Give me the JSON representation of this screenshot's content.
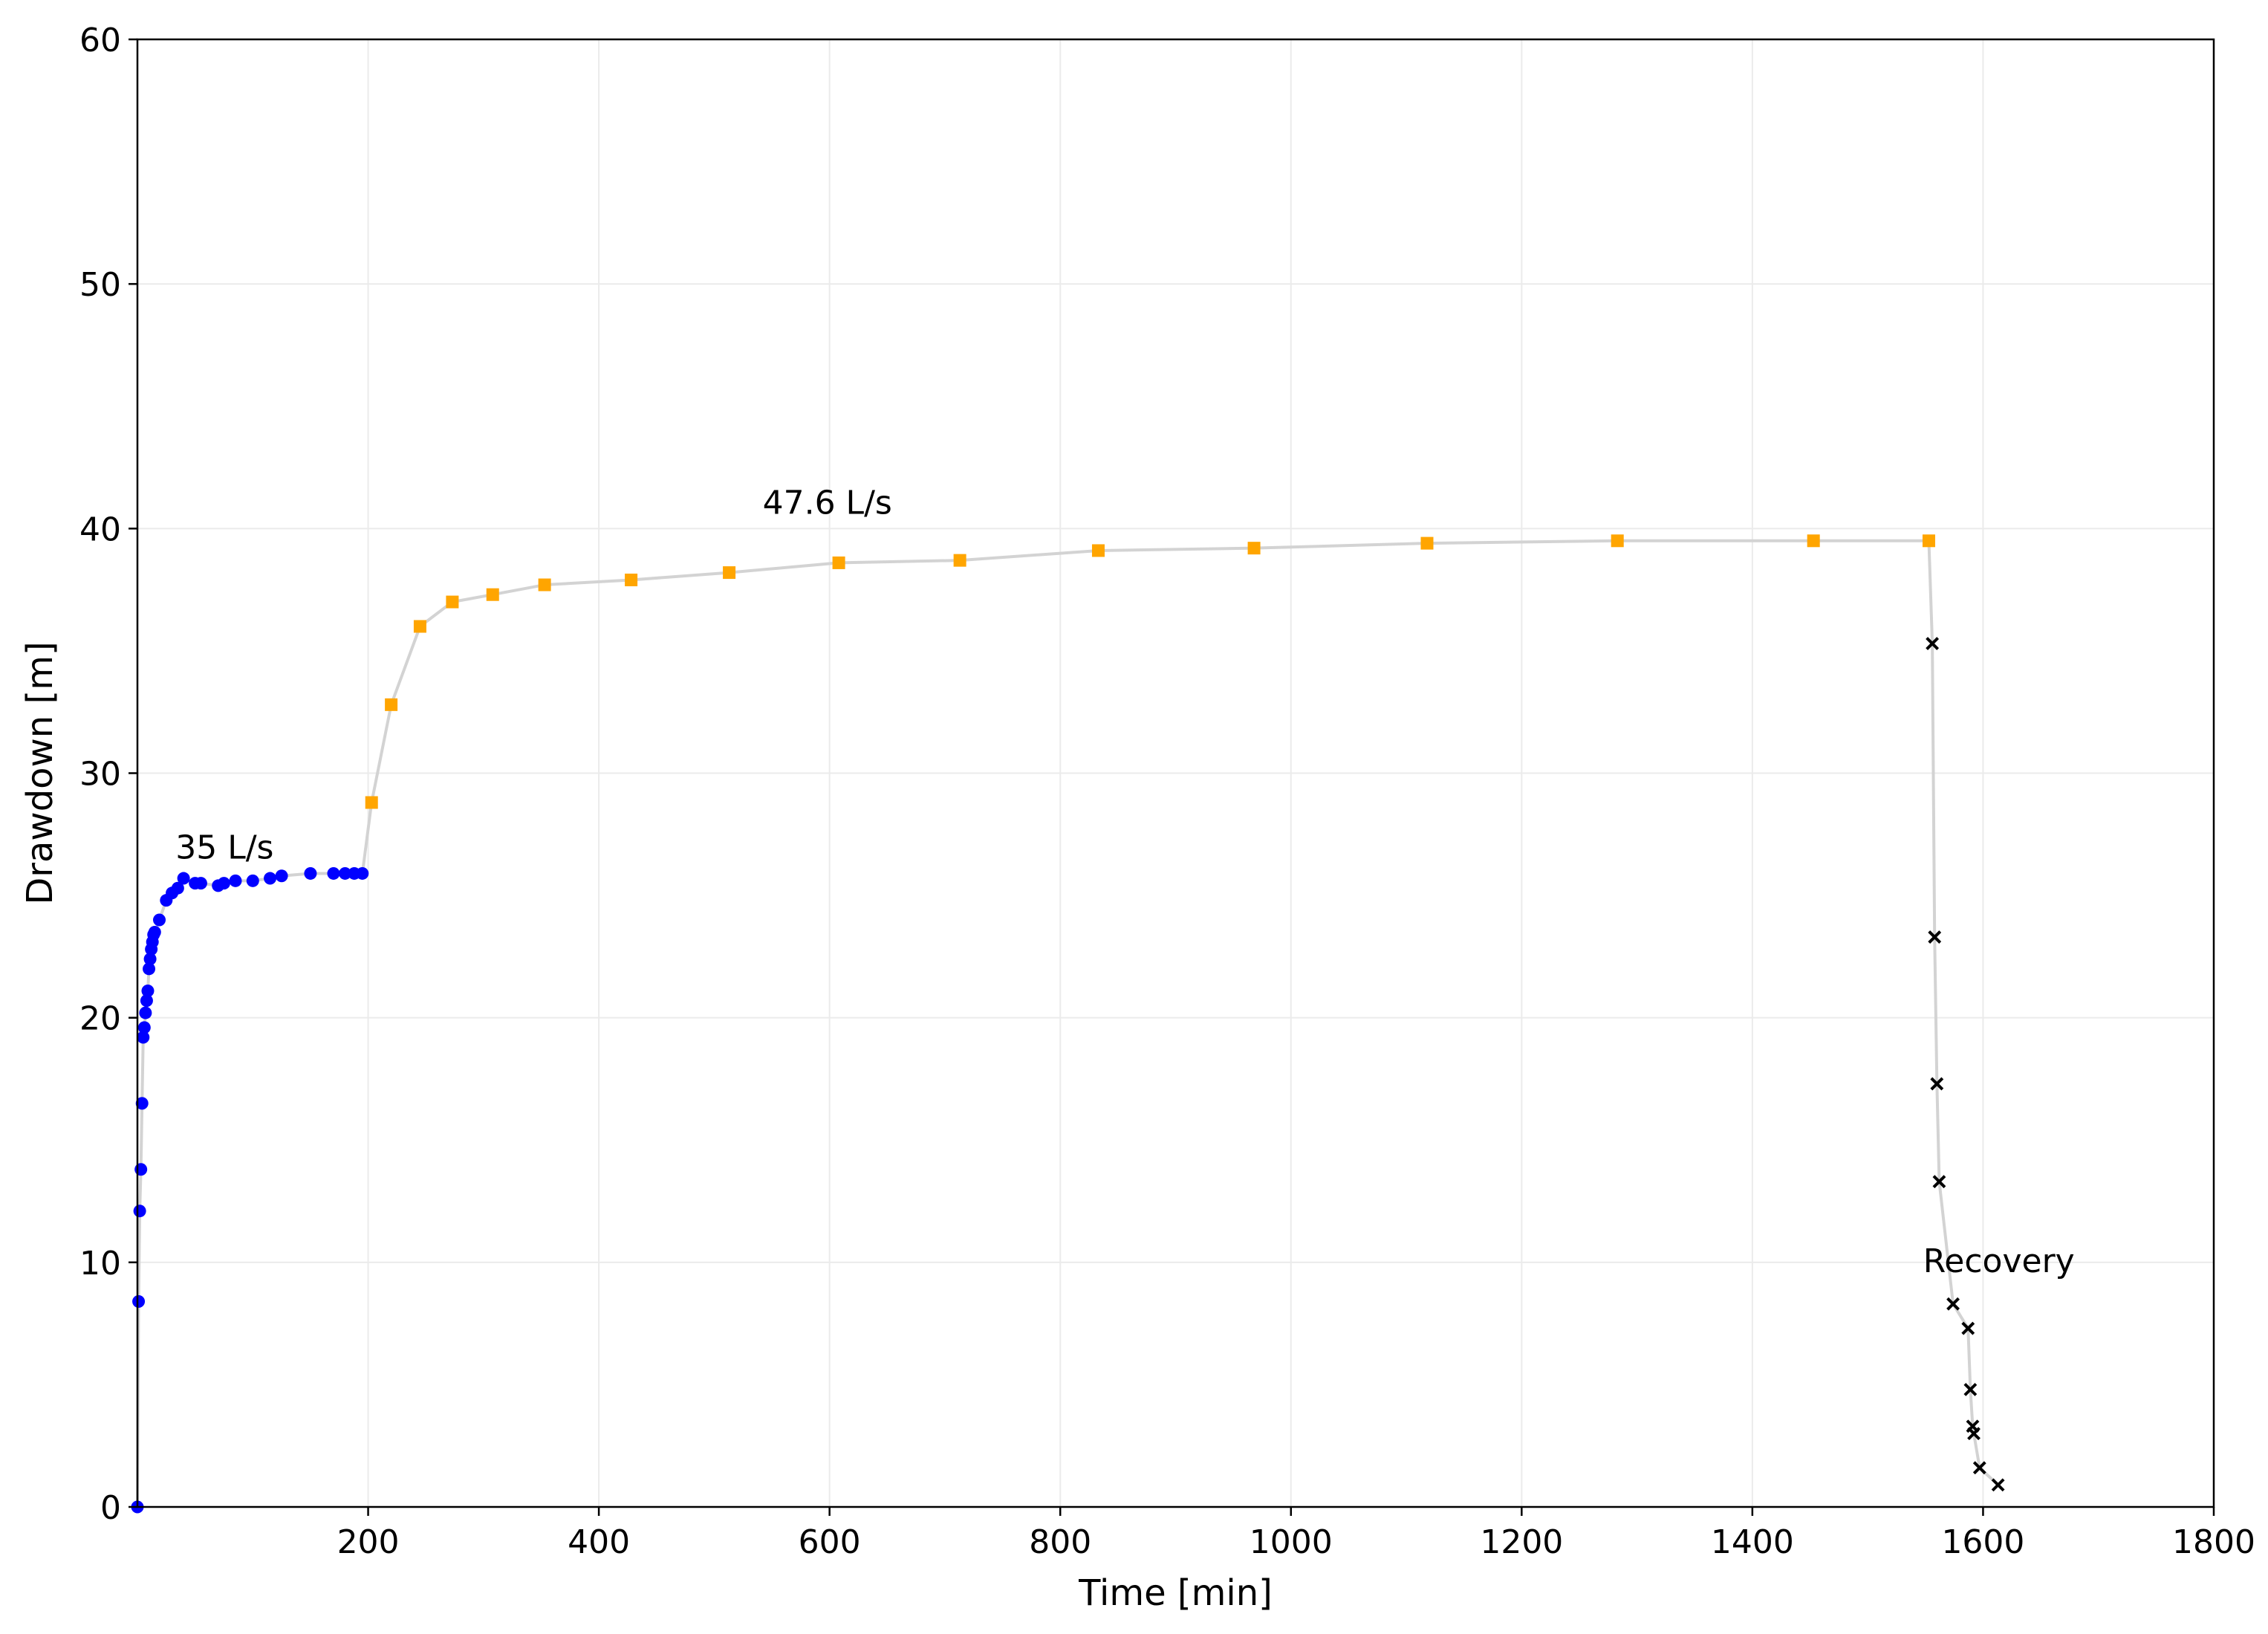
{
  "chart_data": {
    "type": "scatter",
    "title": "",
    "xlabel": "Time [min]",
    "ylabel": "Drawdown [m]",
    "xlim": [
      0,
      1800
    ],
    "ylim": [
      0,
      60
    ],
    "xticks": [
      200,
      400,
      600,
      800,
      1000,
      1200,
      1400,
      1600,
      1800
    ],
    "yticks": [
      0,
      10,
      20,
      30,
      40,
      50,
      60
    ],
    "grid": true,
    "legend": "none",
    "connector_color": "#d3d3d3",
    "annotations": [
      {
        "text": "35 L/s",
        "x": 33,
        "y": 26.5
      },
      {
        "text": "47.6 L/s",
        "x": 542,
        "y": 40.6
      },
      {
        "text": "Recovery",
        "x": 1548,
        "y": 9.6
      }
    ],
    "series": [
      {
        "marker": "circle",
        "color": "#0000ff",
        "x": [
          0,
          1,
          2,
          3,
          4,
          5,
          6,
          7,
          8,
          9,
          10,
          11,
          12,
          13,
          14,
          15,
          19,
          25,
          30,
          35,
          40,
          50,
          55,
          70,
          75,
          85,
          100,
          115,
          125,
          150,
          170,
          180,
          188,
          195
        ],
        "y": [
          0,
          8.4,
          12.1,
          13.8,
          16.5,
          19.2,
          19.6,
          20.2,
          20.7,
          21.1,
          22.0,
          22.4,
          22.8,
          23.1,
          23.4,
          23.5,
          24.0,
          24.8,
          25.1,
          25.3,
          25.7,
          25.5,
          25.5,
          25.4,
          25.5,
          25.6,
          25.6,
          25.7,
          25.8,
          25.9,
          25.9,
          25.9,
          25.9,
          25.9
        ]
      },
      {
        "marker": "square",
        "color": "#ffa500",
        "x": [
          203,
          220,
          245,
          273,
          308,
          353,
          428,
          513,
          608,
          713,
          833,
          968,
          1118,
          1283,
          1453,
          1553
        ],
        "y": [
          28.8,
          32.8,
          36.0,
          37.0,
          37.3,
          37.7,
          37.9,
          38.2,
          38.6,
          38.7,
          39.1,
          39.2,
          39.4,
          39.5,
          39.5,
          39.5
        ]
      },
      {
        "marker": "x",
        "color": "#000000",
        "x": [
          1556,
          1558,
          1560,
          1562,
          1574,
          1587,
          1589,
          1591,
          1592,
          1597,
          1613
        ],
        "y": [
          35.3,
          23.3,
          17.3,
          13.3,
          8.3,
          7.3,
          4.8,
          3.3,
          3.0,
          1.6,
          0.9
        ]
      }
    ]
  }
}
